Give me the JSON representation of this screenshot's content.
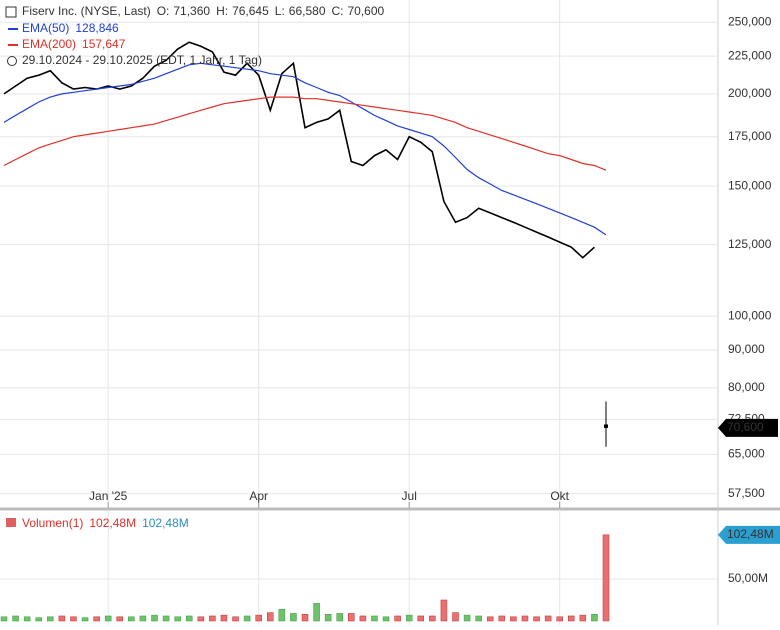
{
  "chart_data": {
    "type": "stock",
    "title": "Fiserv Inc. (NYSE, Last)",
    "subtitle": "29.10.2024 - 29.10.2025  (EDT, 1 Jahr, 1 Tag)",
    "last_candle": [
      {
        "name": "O:",
        "value": 71.36,
        "label": "71,360"
      },
      {
        "name": "H:",
        "value": 76.645,
        "label": "76,645"
      },
      {
        "name": "L:",
        "value": 66.58,
        "label": "66,580"
      },
      {
        "name": "C:",
        "value": 70.6,
        "label": "70,600"
      }
    ],
    "price_tag": {
      "value": 70.6,
      "label": "70,600"
    },
    "log_scale": true,
    "grid": true,
    "categories": [
      null,
      null,
      null,
      null,
      null,
      null,
      null,
      null,
      null,
      "Jan '25",
      null,
      null,
      null,
      null,
      null,
      null,
      null,
      null,
      null,
      null,
      null,
      null,
      "Apr",
      null,
      null,
      null,
      null,
      null,
      null,
      null,
      null,
      null,
      null,
      null,
      null,
      "Jul",
      null,
      null,
      null,
      null,
      null,
      null,
      null,
      null,
      null,
      null,
      null,
      null,
      "Okt",
      null,
      null,
      null,
      null
    ],
    "series": [
      {
        "name": "Close",
        "color": "#000000",
        "values": [
          200,
          205,
          210,
          212,
          215,
          207,
          203,
          204,
          203,
          205,
          203,
          205,
          210,
          218,
          222,
          230,
          235,
          232,
          228,
          214,
          212,
          220,
          212,
          190,
          213,
          220,
          180,
          183,
          185,
          190,
          162,
          160,
          165,
          168,
          163,
          175,
          172,
          167,
          143,
          134,
          136,
          140,
          138,
          136,
          134,
          132,
          130,
          128,
          126,
          124,
          120,
          124,
          null
        ]
      },
      {
        "name": "EMA(50)",
        "color": "#1f3fd6",
        "last_value_label": "128,846",
        "values": [
          183,
          187,
          191,
          195,
          198,
          200,
          201,
          202,
          203,
          204,
          205,
          206,
          208,
          210,
          213,
          216,
          219,
          220,
          219,
          218,
          217,
          216,
          215,
          213,
          212,
          211,
          207,
          204,
          201,
          199,
          195,
          191,
          187,
          184,
          181,
          179,
          177,
          175,
          170,
          164,
          158,
          154,
          151,
          148,
          146,
          144,
          142,
          140,
          138,
          136,
          134,
          132,
          128.846
        ]
      },
      {
        "name": "EMA(200)",
        "color": "#e0302a",
        "last_value_label": "157,647",
        "values": [
          160,
          163,
          166,
          169,
          171,
          173,
          175,
          176,
          177,
          178,
          179,
          180,
          181,
          182,
          184,
          186,
          188,
          190,
          192,
          194,
          195,
          196,
          197,
          198,
          198,
          198,
          197,
          197,
          196,
          195,
          194,
          193,
          192,
          191,
          190,
          189,
          188,
          187,
          185,
          183,
          180,
          178,
          176,
          174,
          172,
          170,
          168,
          166,
          165,
          163,
          161,
          160,
          157.647
        ]
      }
    ],
    "ylim": [
      55,
      268
    ],
    "yticks": [
      {
        "value": 250,
        "label": "250,000"
      },
      {
        "value": 225,
        "label": "225,000"
      },
      {
        "value": 200,
        "label": "200,000"
      },
      {
        "value": 175,
        "label": "175,000"
      },
      {
        "value": 150,
        "label": "150,000"
      },
      {
        "value": 125,
        "label": "125,000"
      },
      {
        "value": 100,
        "label": "100,000"
      },
      {
        "value": 90,
        "label": "90,000"
      },
      {
        "value": 80,
        "label": "80,000"
      },
      {
        "value": 72.5,
        "label": "72,500"
      },
      {
        "value": 65,
        "label": "65,000"
      },
      {
        "value": 57.5,
        "label": "57,500"
      }
    ],
    "volume": {
      "name": "Volumen(1)",
      "up_color": "#6cc36c",
      "down_color": "#e87070",
      "last_labels": [
        {
          "label": "102,48M",
          "color": "#e0302a"
        },
        {
          "label": "102,48M",
          "color": "#2a8fc0"
        }
      ],
      "tag": {
        "value": 102.48,
        "label": "102,48M",
        "color": "#2a9fd0"
      },
      "values": [
        5,
        6,
        5,
        4,
        5,
        6,
        5,
        4,
        5,
        6,
        5,
        5,
        6,
        7,
        6,
        5,
        6,
        5,
        6,
        7,
        5,
        6,
        7,
        10,
        14,
        9,
        8,
        21,
        8,
        9,
        9,
        6,
        6,
        5,
        6,
        7,
        6,
        6,
        25,
        10,
        7,
        6,
        5,
        6,
        5,
        6,
        5,
        6,
        5,
        6,
        7,
        8,
        102.48
      ],
      "ylim": [
        0,
        132
      ],
      "yticks": [
        {
          "value": 50,
          "label": "50,00M"
        }
      ]
    }
  }
}
